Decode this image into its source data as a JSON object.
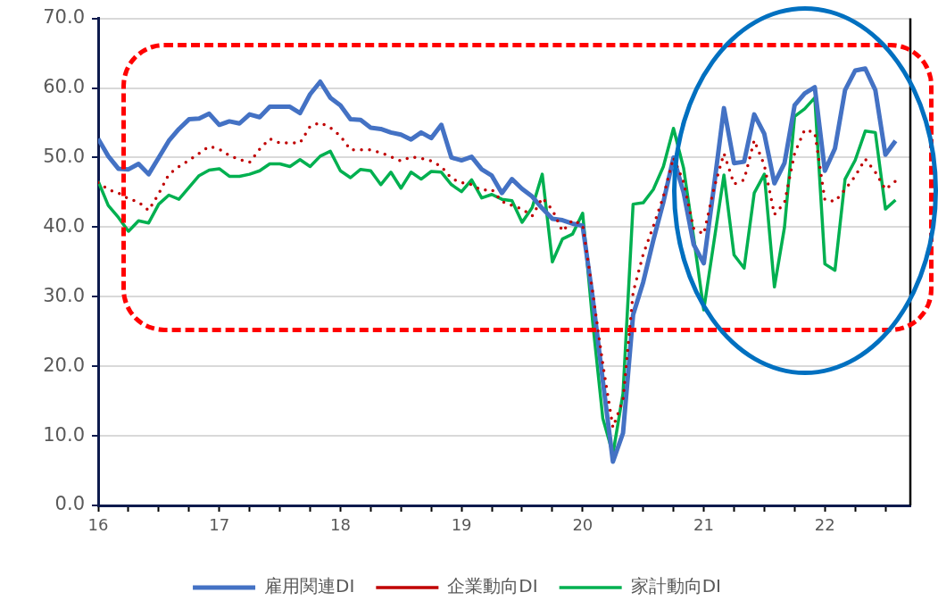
{
  "chart_data": {
    "type": "line",
    "x": [
      "2016-01",
      "2016-02",
      "2016-03",
      "2016-04",
      "2016-05",
      "2016-06",
      "2016-07",
      "2016-08",
      "2016-09",
      "2016-10",
      "2016-11",
      "2016-12",
      "2017-01",
      "2017-02",
      "2017-03",
      "2017-04",
      "2017-05",
      "2017-06",
      "2017-07",
      "2017-08",
      "2017-09",
      "2017-10",
      "2017-11",
      "2017-12",
      "2018-01",
      "2018-02",
      "2018-03",
      "2018-04",
      "2018-05",
      "2018-06",
      "2018-07",
      "2018-08",
      "2018-09",
      "2018-10",
      "2018-11",
      "2018-12",
      "2019-01",
      "2019-02",
      "2019-03",
      "2019-04",
      "2019-05",
      "2019-06",
      "2019-07",
      "2019-08",
      "2019-09",
      "2019-10",
      "2019-11",
      "2019-12",
      "2020-01",
      "2020-02",
      "2020-03",
      "2020-04",
      "2020-05",
      "2020-06",
      "2020-07",
      "2020-08",
      "2020-09",
      "2020-10",
      "2020-11",
      "2020-12",
      "2021-01",
      "2021-02",
      "2021-03",
      "2021-04",
      "2021-05",
      "2021-06",
      "2021-07",
      "2021-08",
      "2021-09",
      "2021-10",
      "2021-11",
      "2021-12",
      "2022-01",
      "2022-02",
      "2022-03",
      "2022-04",
      "2022-05",
      "2022-06",
      "2022-07",
      "2022-08"
    ],
    "series": [
      {
        "name": "雇用関連DI",
        "color": "#4472c4",
        "line_style": "solid",
        "values": [
          52.7,
          50.2,
          48.4,
          48.3,
          49.1,
          47.6,
          50.0,
          52.4,
          54.1,
          55.5,
          55.6,
          56.3,
          54.7,
          55.2,
          54.9,
          56.2,
          55.8,
          57.3,
          57.3,
          57.3,
          56.4,
          59.1,
          60.9,
          58.6,
          57.5,
          55.5,
          55.4,
          54.3,
          54.1,
          53.6,
          53.3,
          52.6,
          53.6,
          52.8,
          54.7,
          50.0,
          49.6,
          50.1,
          48.3,
          47.4,
          44.9,
          46.9,
          45.5,
          44.4,
          42.7,
          41.2,
          41.0,
          40.5,
          40.2,
          29.8,
          17.9,
          6.3,
          10.4,
          27.4,
          32.1,
          38.1,
          43.6,
          50.0,
          45.0,
          37.5,
          34.8,
          45.7,
          57.1,
          49.2,
          49.4,
          56.2,
          53.4,
          46.3,
          49.2,
          57.5,
          59.2,
          60.1,
          48.1,
          51.3,
          59.7,
          62.5,
          62.8,
          59.7,
          50.4,
          52.4
        ]
      },
      {
        "name": "企業動向DI",
        "color": "#c00000",
        "line_style": "dotted",
        "values": [
          46.4,
          45.4,
          44.9,
          44.1,
          43.6,
          42.4,
          44.8,
          47.6,
          48.7,
          49.6,
          50.6,
          51.6,
          51.2,
          50.3,
          49.7,
          49.3,
          51.2,
          52.7,
          52.1,
          52.1,
          52.1,
          54.5,
          55.0,
          54.3,
          53.1,
          51.1,
          51.1,
          51.1,
          50.7,
          50.1,
          49.5,
          50.1,
          49.9,
          49.5,
          48.7,
          47.0,
          46.4,
          46.1,
          45.3,
          45.4,
          43.7,
          43.1,
          42.6,
          41.6,
          44.2,
          42.5,
          39.4,
          41.0,
          40.3,
          30.6,
          20.3,
          11.2,
          15.2,
          30.6,
          36.1,
          40.1,
          44.4,
          50.0,
          46.5,
          39.8,
          39.0,
          45.5,
          50.6,
          46.2,
          46.8,
          52.5,
          48.9,
          41.8,
          43.5,
          50.6,
          54.0,
          53.6,
          43.9,
          43.7,
          45.4,
          47.3,
          49.8,
          47.9,
          45.4,
          46.6
        ]
      },
      {
        "name": "家計動向DI",
        "color": "#00b050",
        "line_style": "solid",
        "values": [
          46.6,
          43.1,
          41.4,
          39.4,
          40.9,
          40.6,
          43.3,
          44.6,
          44.0,
          45.7,
          47.4,
          48.2,
          48.4,
          47.3,
          47.3,
          47.6,
          48.1,
          49.1,
          49.1,
          48.7,
          49.7,
          48.7,
          50.2,
          50.9,
          48.1,
          47.1,
          48.3,
          48.1,
          46.1,
          47.9,
          45.6,
          47.9,
          46.9,
          48.0,
          47.9,
          46.1,
          45.1,
          46.8,
          44.2,
          44.7,
          44.0,
          43.8,
          40.7,
          42.8,
          47.6,
          35.0,
          38.3,
          39.0,
          42.0,
          26.3,
          12.5,
          7.4,
          16.1,
          43.3,
          43.5,
          45.4,
          48.7,
          54.2,
          48.5,
          38.5,
          28.1,
          37.8,
          47.5,
          36.0,
          34.1,
          44.9,
          47.6,
          31.4,
          40.0,
          55.9,
          57.0,
          58.6,
          34.7,
          33.8,
          46.9,
          49.6,
          53.8,
          53.6,
          42.6,
          43.9
        ]
      }
    ],
    "xlim": [
      "2016-01",
      "2022-09-15"
    ],
    "xticks": [
      {
        "value": "2016-01",
        "label": "16"
      },
      {
        "value": "2016-04",
        "label": null
      },
      {
        "value": "2016-07",
        "label": null
      },
      {
        "value": "2016-10",
        "label": null
      },
      {
        "value": "2017-01",
        "label": "17"
      },
      {
        "value": "2017-04",
        "label": null
      },
      {
        "value": "2017-07",
        "label": null
      },
      {
        "value": "2017-10",
        "label": null
      },
      {
        "value": "2018-01",
        "label": "18"
      },
      {
        "value": "2018-04",
        "label": null
      },
      {
        "value": "2018-07",
        "label": null
      },
      {
        "value": "2018-10",
        "label": null
      },
      {
        "value": "2019-01",
        "label": "19"
      },
      {
        "value": "2019-04",
        "label": null
      },
      {
        "value": "2019-07",
        "label": null
      },
      {
        "value": "2019-10",
        "label": null
      },
      {
        "value": "2020-01",
        "label": "20"
      },
      {
        "value": "2020-04",
        "label": null
      },
      {
        "value": "2020-07",
        "label": null
      },
      {
        "value": "2020-10",
        "label": null
      },
      {
        "value": "2021-01",
        "label": "21"
      },
      {
        "value": "2021-04",
        "label": null
      },
      {
        "value": "2021-07",
        "label": null
      },
      {
        "value": "2021-10",
        "label": null
      },
      {
        "value": "2022-01",
        "label": "22"
      },
      {
        "value": "2022-04",
        "label": null
      },
      {
        "value": "2022-07",
        "label": null
      }
    ],
    "ylim": [
      0,
      70
    ],
    "yticks": [
      {
        "value": 0,
        "label": "0.0"
      },
      {
        "value": 10,
        "label": "10.0"
      },
      {
        "value": 20,
        "label": "20.0"
      },
      {
        "value": 30,
        "label": "30.0"
      },
      {
        "value": 40,
        "label": "40.0"
      },
      {
        "value": 50,
        "label": "50.0"
      },
      {
        "value": 60,
        "label": "60.0"
      },
      {
        "value": 70,
        "label": "70.0"
      }
    ],
    "grid": "y",
    "legend": "bottom",
    "marker": "none"
  }
}
